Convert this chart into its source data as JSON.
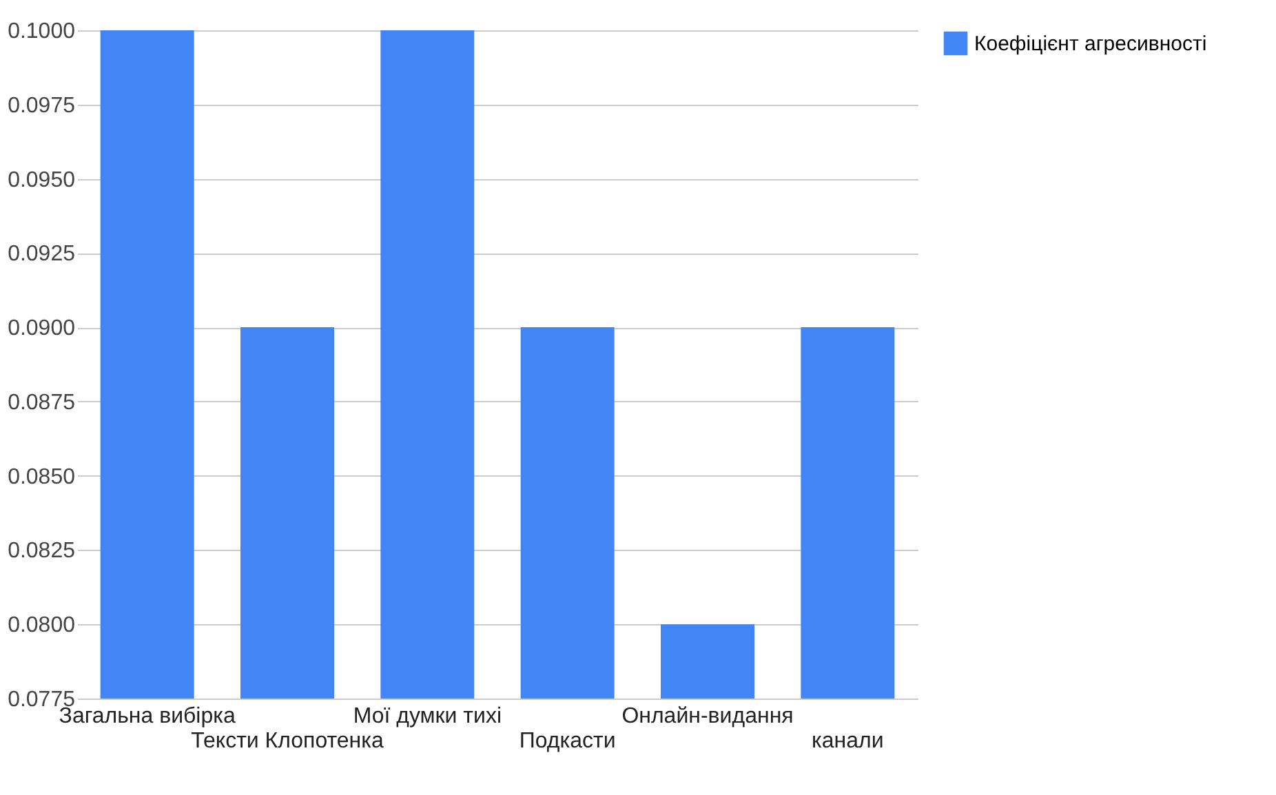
{
  "chart_data": {
    "type": "bar",
    "categories": [
      "Загальна вибірка",
      "Тексти Клопотенка",
      "Мої думки тихі",
      "Подкасти",
      "Онлайн-видання",
      "канали"
    ],
    "series": [
      {
        "name": "Коефіцієнт агресивності",
        "color": "#4285f4",
        "values": [
          0.1,
          0.09,
          0.1,
          0.09,
          0.08,
          0.09
        ]
      }
    ],
    "ylim": [
      0.0775,
      0.1
    ],
    "yticks": [
      {
        "value": 0.0775,
        "label": "0.0775"
      },
      {
        "value": 0.08,
        "label": "0.0800"
      },
      {
        "value": 0.0825,
        "label": "0.0825"
      },
      {
        "value": 0.085,
        "label": "0.0850"
      },
      {
        "value": 0.0875,
        "label": "0.0875"
      },
      {
        "value": 0.09,
        "label": "0.0900"
      },
      {
        "value": 0.0925,
        "label": "0.0925"
      },
      {
        "value": 0.095,
        "label": "0.0950"
      },
      {
        "value": 0.0975,
        "label": "0.0975"
      },
      {
        "value": 0.1,
        "label": "0.1000"
      }
    ],
    "grid": "y",
    "legend": "top right"
  }
}
